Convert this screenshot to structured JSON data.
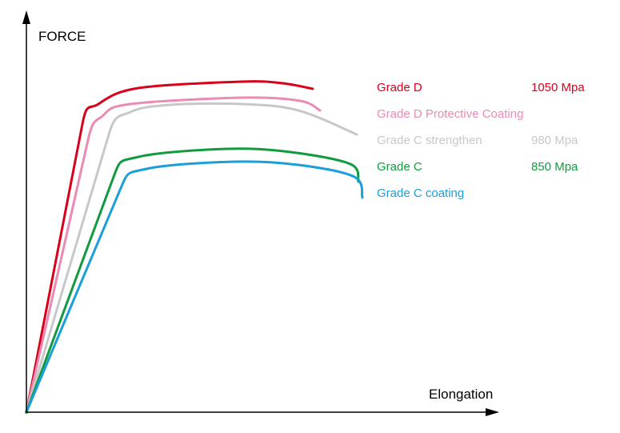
{
  "chart_data": {
    "type": "line",
    "xlabel": "Elongation",
    "ylabel": "FORCE",
    "grid": false,
    "legend_position": "right",
    "series": [
      {
        "name": "Grade D",
        "value_label": "1050 Mpa",
        "color": "#d9001b",
        "points": [
          [
            0,
            0
          ],
          [
            70,
            360
          ],
          [
            90,
            385
          ],
          [
            140,
            405
          ],
          [
            270,
            413
          ],
          [
            320,
            411
          ],
          [
            358,
            404
          ]
        ]
      },
      {
        "name": "Grade D Protective Coating",
        "value_label": "",
        "color": "#ea8bb4",
        "points": [
          [
            0,
            0
          ],
          [
            77,
            340
          ],
          [
            95,
            370
          ],
          [
            130,
            385
          ],
          [
            270,
            393
          ],
          [
            342,
            389
          ],
          [
            367,
            377
          ]
        ]
      },
      {
        "name": "Grade C strengthen",
        "value_label": "980 Mpa",
        "color": "#c8c8c8",
        "points": [
          [
            0,
            0
          ],
          [
            103,
            347
          ],
          [
            130,
            375
          ],
          [
            180,
            384
          ],
          [
            270,
            385
          ],
          [
            340,
            377
          ],
          [
            413,
            347
          ]
        ]
      },
      {
        "name": "Grade C",
        "value_label": "850 Mpa",
        "color": "#129b3e",
        "points": [
          [
            0,
            0
          ],
          [
            109,
            294
          ],
          [
            140,
            319
          ],
          [
            250,
            329
          ],
          [
            330,
            325
          ],
          [
            405,
            310
          ],
          [
            415,
            288
          ]
        ]
      },
      {
        "name": "Grade C coating",
        "value_label": "",
        "color": "#1b9fdb",
        "points": [
          [
            0,
            0
          ],
          [
            118,
            280
          ],
          [
            150,
            304
          ],
          [
            260,
            313
          ],
          [
            340,
            309
          ],
          [
            410,
            294
          ],
          [
            420,
            268
          ]
        ]
      }
    ]
  }
}
